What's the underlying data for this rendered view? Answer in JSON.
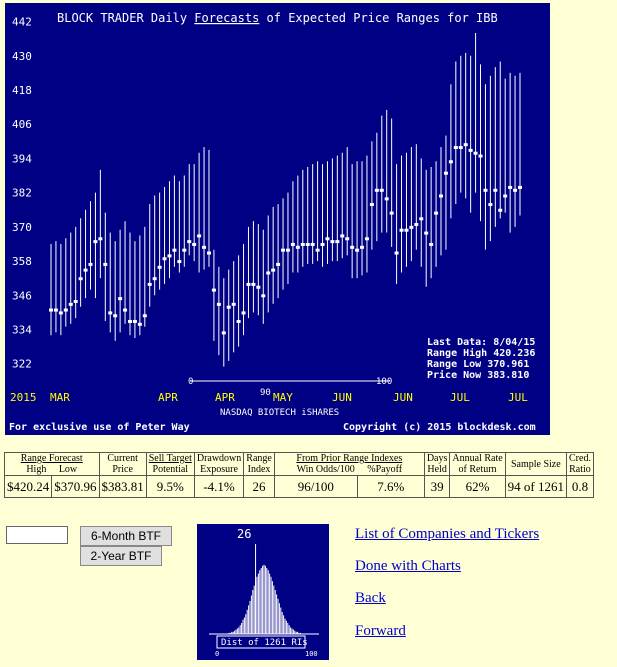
{
  "chart_data": {
    "type": "range-bar",
    "title": "BLOCK TRADER Daily Forecasts of Expected Price Ranges for  IBB",
    "title_parts": {
      "pre": "BLOCK TRADER Daily ",
      "link": "Forecasts",
      "post": " of Expected Price Ranges for  IBB"
    },
    "y_ticks": [
      442,
      430,
      418,
      406,
      394,
      382,
      370,
      358,
      346,
      334,
      322
    ],
    "ylim": [
      317,
      445
    ],
    "x_labels": [
      "2015",
      "MAR",
      "APR",
      "APR",
      "MAY",
      "JUN",
      "JUN",
      "JUL",
      "JUL"
    ],
    "scale_labels": {
      "left": "0",
      "mid": "90",
      "right": "100"
    },
    "subtitle": "NASDAQ BIOTECH iSHARES",
    "footer_left": "For exclusive use of Peter Way",
    "footer_right": "Copyright (c) 2015 blockdesk.com",
    "info": [
      "Last Data: 8/04/15",
      "Range High  420.236",
      "Range Low   370.961",
      "Price Now   383.810"
    ],
    "colors": {
      "bg": "#000084",
      "axis_text": "#ffffff",
      "month_text": "#ffff00",
      "bars": "#ffffff"
    },
    "ranges": [
      [
        332,
        364
      ],
      [
        333,
        365
      ],
      [
        332,
        364
      ],
      [
        335,
        366
      ],
      [
        336,
        368
      ],
      [
        338,
        370
      ],
      [
        342,
        373
      ],
      [
        345,
        376
      ],
      [
        348,
        379
      ],
      [
        345,
        382
      ],
      [
        352,
        390
      ],
      [
        337,
        375
      ],
      [
        333,
        368
      ],
      [
        330,
        365
      ],
      [
        333,
        369
      ],
      [
        336,
        372
      ],
      [
        332,
        368
      ],
      [
        331,
        365
      ],
      [
        332,
        367
      ],
      [
        335,
        370
      ],
      [
        342,
        378
      ],
      [
        346,
        381
      ],
      [
        348,
        382
      ],
      [
        350,
        384
      ],
      [
        352,
        386
      ],
      [
        356,
        388
      ],
      [
        354,
        386
      ],
      [
        356,
        388
      ],
      [
        360,
        392
      ],
      [
        358,
        392
      ],
      [
        354,
        396
      ],
      [
        355,
        398
      ],
      [
        356,
        397
      ],
      [
        330,
        362
      ],
      [
        325,
        356
      ],
      [
        321,
        352
      ],
      [
        323,
        355
      ],
      [
        326,
        358
      ],
      [
        328,
        360
      ],
      [
        332,
        364
      ],
      [
        338,
        370
      ],
      [
        340,
        372
      ],
      [
        339,
        371
      ],
      [
        336,
        369
      ],
      [
        340,
        374
      ],
      [
        343,
        377
      ],
      [
        345,
        378
      ],
      [
        348,
        380
      ],
      [
        350,
        382
      ],
      [
        354,
        386
      ],
      [
        354,
        388
      ],
      [
        356,
        390
      ],
      [
        357,
        391
      ],
      [
        357,
        392
      ],
      [
        358,
        393
      ],
      [
        356,
        392
      ],
      [
        357,
        393
      ],
      [
        358,
        394
      ],
      [
        358,
        395
      ],
      [
        359,
        396
      ],
      [
        360,
        398
      ],
      [
        352,
        392
      ],
      [
        352,
        393
      ],
      [
        353,
        393
      ],
      [
        354,
        395
      ],
      [
        362,
        400
      ],
      [
        365,
        403
      ],
      [
        368,
        409
      ],
      [
        368,
        411
      ],
      [
        363,
        408
      ],
      [
        350,
        392
      ],
      [
        354,
        395
      ],
      [
        356,
        396
      ],
      [
        358,
        398
      ],
      [
        362,
        399
      ],
      [
        356,
        394
      ],
      [
        349,
        390
      ],
      [
        352,
        391
      ],
      [
        356,
        393
      ],
      [
        360,
        398
      ],
      [
        362,
        402
      ],
      [
        373,
        420
      ],
      [
        378,
        428
      ],
      [
        382,
        430
      ],
      [
        380,
        431
      ],
      [
        375,
        430
      ],
      [
        382,
        438
      ],
      [
        372,
        427
      ],
      [
        362,
        420
      ],
      [
        365,
        423
      ],
      [
        370,
        426
      ],
      [
        373,
        428
      ],
      [
        375,
        422
      ],
      [
        368,
        424
      ],
      [
        370,
        423
      ],
      [
        374,
        424
      ]
    ],
    "price_ticks": [
      341,
      341,
      340,
      341,
      343,
      344,
      352,
      355,
      357,
      365,
      366,
      357,
      340,
      339,
      345,
      341,
      337,
      337,
      336,
      339,
      350,
      352,
      356,
      359,
      360,
      362,
      358,
      362,
      365,
      364,
      367,
      363,
      361,
      348,
      343,
      333,
      342,
      343,
      337,
      340,
      350,
      350,
      349,
      346,
      354,
      355,
      357,
      362,
      362,
      364,
      363,
      364,
      364,
      364,
      362,
      364,
      366,
      365,
      365,
      367,
      366,
      363,
      362,
      363,
      366,
      378,
      383,
      383,
      380,
      375,
      361,
      369,
      369,
      370,
      371,
      373,
      368,
      364,
      375,
      381,
      389,
      393,
      398,
      398,
      399,
      397,
      396,
      395,
      383,
      378,
      383,
      376,
      381,
      384,
      383,
      384
    ]
  },
  "stats_table": {
    "headers": {
      "range_forecast": "Range Forecast",
      "high": "High",
      "low": "Low",
      "current_price_1": "Current",
      "current_price_2": "Price",
      "sell_target_1": "Sell Target",
      "sell_target_2": "Potential",
      "drawdown_1": "Drawdown",
      "drawdown_2": "Exposure",
      "range_index_1": "Range",
      "range_index_2": "Index",
      "from_prior": "From Prior Range Indexes",
      "win_odds": "Win Odds/100",
      "payoff": "%Payoff",
      "days_held_1": "Days",
      "days_held_2": "Held",
      "annual_rate_1": "Annual Rate",
      "annual_rate_2": "of Return",
      "sample_size": "Sample Size",
      "cred_ratio_1": "Cred.",
      "cred_ratio_2": "Ratio"
    },
    "values": {
      "high": "$420.24",
      "low": "$370.96",
      "current_price": "$383.81",
      "sell_target": "9.5%",
      "drawdown": "-4.1%",
      "range_index": "26",
      "win_odds": "96/100",
      "payoff": "7.6%",
      "days_held": "39",
      "annual_rate": "62%",
      "sample_size": "94 of 1261",
      "cred_ratio": "0.8"
    }
  },
  "controls": {
    "ticker_value": "",
    "btn_6m": "6-Month BTF",
    "btn_2y": "2-Year BTF"
  },
  "distribution": {
    "top_label": "26",
    "caption": "Dist of 1261 RIs",
    "axis_left": "0",
    "axis_right": "100",
    "marker_value": 26,
    "heights": [
      1,
      1,
      2,
      2,
      3,
      4,
      5,
      6,
      8,
      10,
      13,
      15,
      18,
      22,
      26,
      30,
      35,
      40,
      44,
      48,
      52,
      55,
      58,
      60,
      62,
      63,
      62,
      60,
      58,
      55,
      52,
      48,
      44,
      40,
      36,
      32,
      28,
      24,
      20,
      17,
      14,
      12,
      10,
      8,
      6,
      5,
      4,
      3,
      2,
      2,
      1,
      1
    ]
  },
  "links": {
    "list": "List of Companies and Tickers",
    "done": "Done with Charts",
    "back": "Back",
    "forward": "Forward"
  }
}
